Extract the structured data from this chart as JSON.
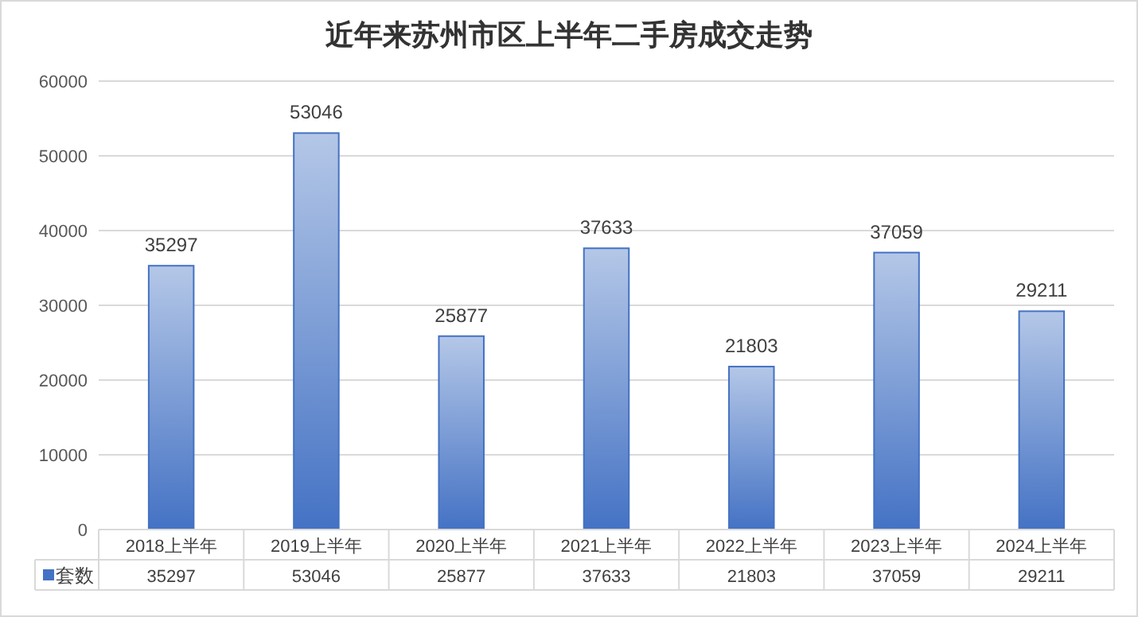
{
  "chart_data": {
    "type": "bar",
    "title": "近年来苏州市区上半年二手房成交走势",
    "categories": [
      "2018上半年",
      "2019上半年",
      "2020上半年",
      "2021上半年",
      "2022上半年",
      "2023上半年",
      "2024上半年"
    ],
    "series": [
      {
        "name": "套数",
        "color": "#4472c4",
        "values": [
          35297,
          53046,
          25877,
          37633,
          21803,
          37059,
          29211
        ]
      }
    ],
    "annotations": [
      "35297",
      "53046",
      "25877",
      "37633",
      "21803",
      "37059",
      "29211"
    ],
    "ylim": [
      0,
      60000
    ],
    "yticks": [
      0,
      10000,
      20000,
      30000,
      40000,
      50000,
      60000
    ],
    "grid": "y",
    "data_labels": true,
    "legend": "bottom"
  }
}
